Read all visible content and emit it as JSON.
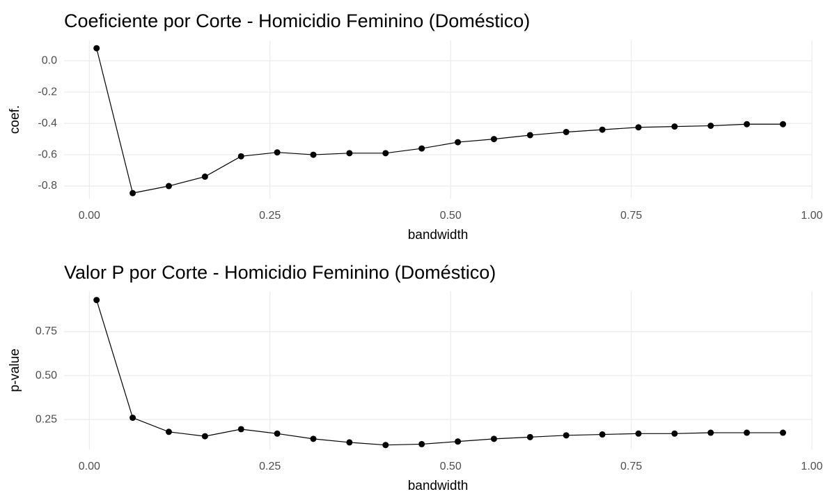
{
  "chart_data": [
    {
      "type": "line",
      "title": "Coeficiente por Corte - Homicidio Feminino (Doméstico)",
      "x_label": "bandwidth",
      "y_label": "coef.",
      "x": [
        0.01,
        0.06,
        0.11,
        0.16,
        0.21,
        0.26,
        0.31,
        0.36,
        0.41,
        0.46,
        0.51,
        0.56,
        0.61,
        0.66,
        0.71,
        0.76,
        0.81,
        0.86,
        0.91,
        0.96
      ],
      "series": [
        {
          "color": "#000000",
          "values": [
            0.08,
            -0.845,
            -0.8,
            -0.74,
            -0.61,
            -0.585,
            -0.6,
            -0.59,
            -0.59,
            -0.56,
            -0.52,
            -0.5,
            -0.475,
            -0.455,
            -0.44,
            -0.425,
            -0.42,
            -0.415,
            -0.405,
            -0.405
          ]
        }
      ],
      "xlim": [
        -0.035,
        1.0
      ],
      "ylim": [
        -0.88,
        0.13
      ],
      "xticks": [
        {
          "value": 0,
          "label": "0.00"
        },
        0.25,
        {
          "value": 0.5,
          "label": "0.50"
        },
        0.75,
        {
          "value": 1,
          "label": "1.00"
        }
      ],
      "yticks": [
        {
          "value": 0,
          "label": "0.0"
        },
        -0.2,
        -0.4,
        -0.6,
        -0.8
      ],
      "grid": true
    },
    {
      "type": "line",
      "title": "Valor P por Corte - Homicidio Feminino (Doméstico)",
      "x_label": "bandwidth",
      "y_label": "p-value",
      "x": [
        0.01,
        0.06,
        0.11,
        0.16,
        0.21,
        0.26,
        0.31,
        0.36,
        0.41,
        0.46,
        0.51,
        0.56,
        0.61,
        0.66,
        0.71,
        0.76,
        0.81,
        0.86,
        0.91,
        0.96
      ],
      "series": [
        {
          "color": "#000000",
          "values": [
            0.93,
            0.26,
            0.18,
            0.155,
            0.195,
            0.17,
            0.14,
            0.12,
            0.105,
            0.11,
            0.125,
            0.14,
            0.15,
            0.16,
            0.165,
            0.17,
            0.17,
            0.175,
            0.175,
            0.175
          ]
        }
      ],
      "xlim": [
        -0.035,
        1.0
      ],
      "ylim": [
        0.08,
        0.98
      ],
      "xticks": [
        {
          "value": 0,
          "label": "0.00"
        },
        0.25,
        {
          "value": 0.5,
          "label": "0.50"
        },
        0.75,
        {
          "value": 1,
          "label": "1.00"
        }
      ],
      "yticks": [
        0.25,
        {
          "value": 0.5,
          "label": "0.50"
        },
        0.75
      ],
      "grid": true
    }
  ]
}
